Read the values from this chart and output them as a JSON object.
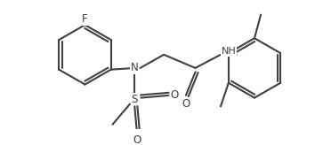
{
  "bg_color": "#ffffff",
  "line_color": "#404040",
  "lw": 1.5,
  "fs": 8.5,
  "figsize": [
    3.54,
    1.64
  ],
  "dpi": 100,
  "xlim": [
    0,
    354
  ],
  "ylim": [
    0,
    164
  ]
}
